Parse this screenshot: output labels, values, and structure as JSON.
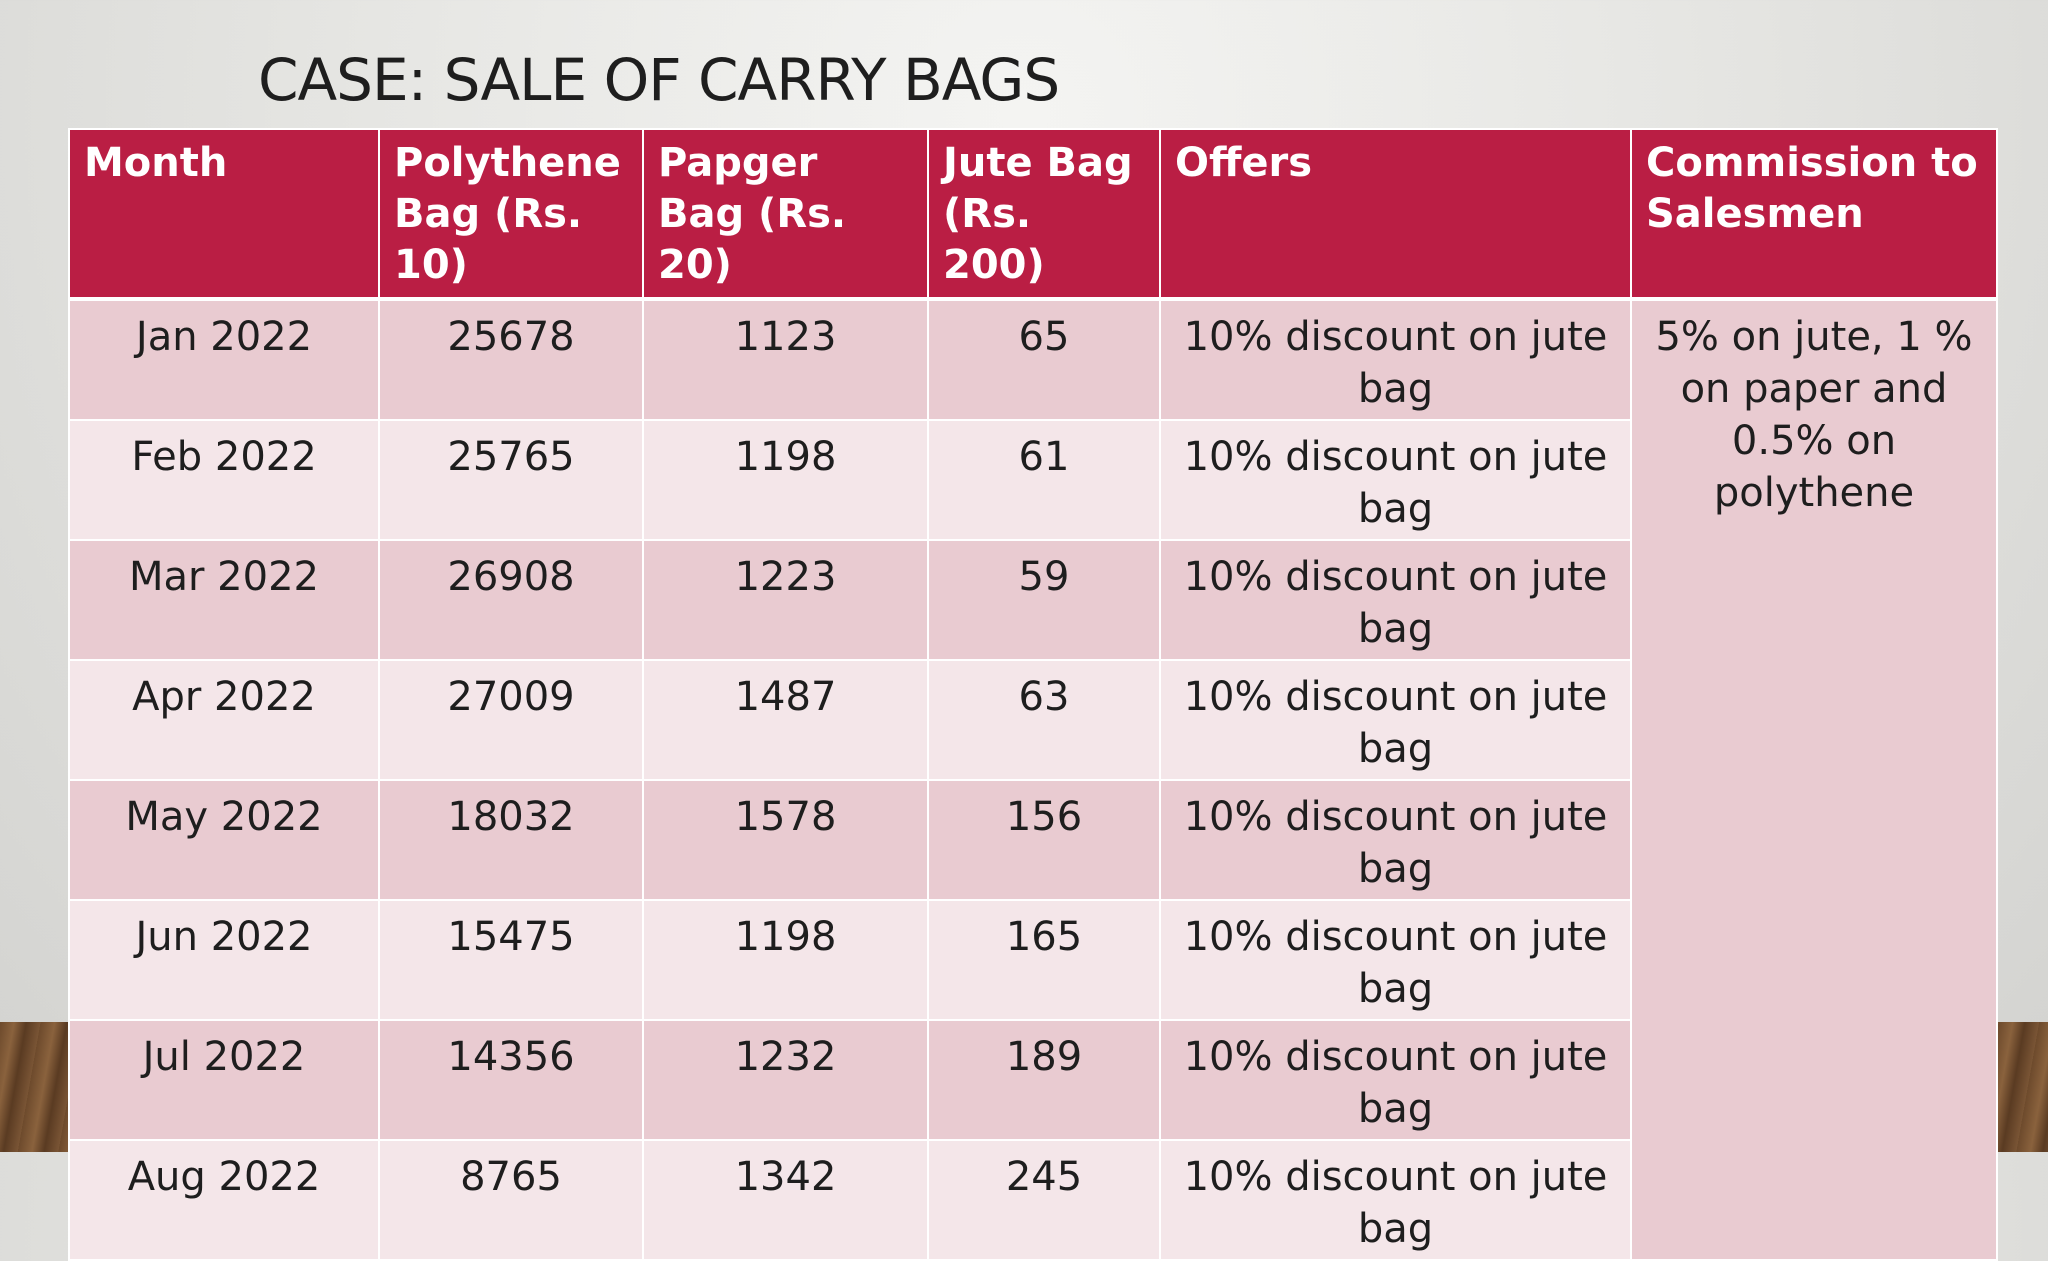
{
  "title": "CASE: SALE OF CARRY BAGS",
  "table": {
    "headers": [
      "Month",
      "Polythene Bag (Rs. 10)",
      "Papger Bag (Rs. 20)",
      "Jute Bag (Rs. 200)",
      "Offers",
      "Commission to Salesmen"
    ],
    "rows": [
      {
        "month": "Jan 2022",
        "polythene": "25678",
        "paper": "1123",
        "jute": "65",
        "offer": "10% discount on jute bag"
      },
      {
        "month": "Feb 2022",
        "polythene": "25765",
        "paper": "1198",
        "jute": "61",
        "offer": "10% discount on jute bag"
      },
      {
        "month": "Mar 2022",
        "polythene": "26908",
        "paper": "1223",
        "jute": "59",
        "offer": "10% discount on jute bag"
      },
      {
        "month": "Apr 2022",
        "polythene": "27009",
        "paper": "1487",
        "jute": "63",
        "offer": "10% discount on jute bag"
      },
      {
        "month": "May 2022",
        "polythene": "18032",
        "paper": "1578",
        "jute": "156",
        "offer": "10% discount on jute bag"
      },
      {
        "month": "Jun 2022",
        "polythene": "15475",
        "paper": "1198",
        "jute": "165",
        "offer": "10% discount on jute bag"
      },
      {
        "month": "Jul 2022",
        "polythene": "14356",
        "paper": "1232",
        "jute": "189",
        "offer": "10% discount on jute bag"
      },
      {
        "month": "Aug 2022",
        "polythene": "8765",
        "paper": "1342",
        "jute": "245",
        "offer": "10% discount on jute bag"
      }
    ],
    "commission": "5% on jute, 1 % on paper and 0.5% on polythene"
  },
  "colors": {
    "header_bg": "#ba1e44",
    "row_odd": "#e9cbd1",
    "row_even": "#f4e6e9"
  }
}
